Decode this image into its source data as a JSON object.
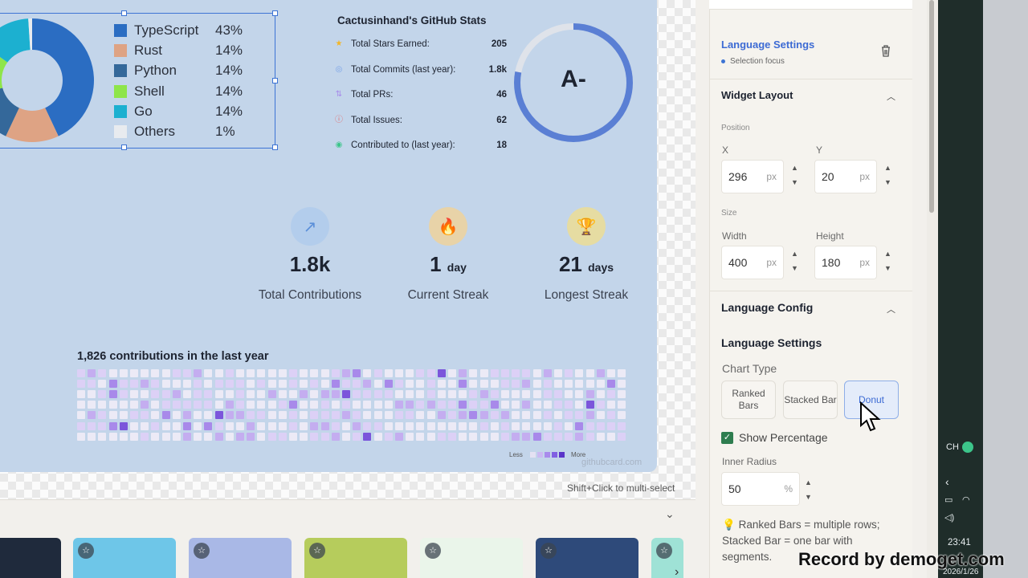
{
  "language_card": {
    "items": [
      {
        "name": "TypeScript",
        "pct": "43%",
        "value": 43,
        "color": "#2b6dc2"
      },
      {
        "name": "Rust",
        "pct": "14%",
        "value": 14,
        "color": "#dea384"
      },
      {
        "name": "Python",
        "pct": "14%",
        "value": 14,
        "color": "#34689a"
      },
      {
        "name": "Shell",
        "pct": "14%",
        "value": 14,
        "color": "#8ee54a"
      },
      {
        "name": "Go",
        "pct": "14%",
        "value": 14,
        "color": "#1cb0d0"
      },
      {
        "name": "Others",
        "pct": "1%",
        "value": 1,
        "color": "#e8ebef"
      }
    ]
  },
  "stats": {
    "title": "Cactusinhand's GitHub Stats",
    "rows": [
      {
        "label": "Total Stars Earned:",
        "value": "205",
        "icon": "star-icon",
        "color": "#f3b627",
        "glyph": "★"
      },
      {
        "label": "Total Commits (last year):",
        "value": "1.8k",
        "icon": "commit-icon",
        "color": "#7aa3e8",
        "glyph": "◎"
      },
      {
        "label": "Total PRs:",
        "value": "46",
        "icon": "pull-request-icon",
        "color": "#a78bea",
        "glyph": "⇅"
      },
      {
        "label": "Total Issues:",
        "value": "62",
        "icon": "issue-icon",
        "color": "#e26a6a",
        "glyph": "ⓘ"
      },
      {
        "label": "Contributed to (last year):",
        "value": "18",
        "icon": "repo-icon",
        "color": "#3cc58a",
        "glyph": "◉"
      }
    ],
    "grade": "A-",
    "grade_progress": 0.78
  },
  "streaks": [
    {
      "number": "1.8k",
      "unit": "",
      "label": "Total Contributions",
      "icon": "trend-up-icon",
      "glyph": "↗",
      "bg": "#b3cdec",
      "fg": "#5b8fd9"
    },
    {
      "number": "1",
      "unit": "day",
      "label": "Current Streak",
      "icon": "flame-icon",
      "glyph": "🔥",
      "bg": "#e8d3a8",
      "fg": "#e57b2b"
    },
    {
      "number": "21",
      "unit": "days",
      "label": "Longest Streak",
      "icon": "trophy-icon",
      "glyph": "🏆",
      "bg": "#e6dca2",
      "fg": "#d3a41b"
    }
  ],
  "contributions": {
    "title": "1,826 contributions in the last year",
    "less": "Less",
    "more": "More",
    "watermark": "githubcard.com"
  },
  "canvas_hint": "Shift+Click to multi-select",
  "panel": {
    "selected_title": "Language Settings",
    "selected_sub": "Selection focus",
    "widget_layout": "Widget Layout",
    "position_lbl": "Position",
    "x_lbl": "X",
    "x_val": "296",
    "y_lbl": "Y",
    "y_val": "20",
    "size_lbl": "Size",
    "width_lbl": "Width",
    "width_val": "400",
    "height_lbl": "Height",
    "height_val": "180",
    "px": "px",
    "language_config": "Language Config",
    "language_settings": "Language Settings",
    "chart_type_lbl": "Chart Type",
    "chart_types": [
      "Ranked Bars",
      "Stacked Bar",
      "Donut"
    ],
    "show_pct": "Show Percentage",
    "inner_radius_lbl": "Inner Radius",
    "inner_radius_val": "50",
    "pct_unit": "%",
    "tip": "Ranked Bars = multiple rows; Stacked Bar = one bar with segments."
  },
  "thumbnails": [
    {
      "bg": "#1f2a3c"
    },
    {
      "bg": "#6ec6e8"
    },
    {
      "bg": "#a9b8e6"
    },
    {
      "bg": "#b6cc5c"
    },
    {
      "bg": "#eaf5ea"
    },
    {
      "bg": "#2e4a7a"
    },
    {
      "bg": "#9fe2d6"
    }
  ],
  "taskbar": {
    "ime": "CH",
    "time": "23:41",
    "date": "2026/1/26"
  },
  "recorder": "Record by demoget.com"
}
